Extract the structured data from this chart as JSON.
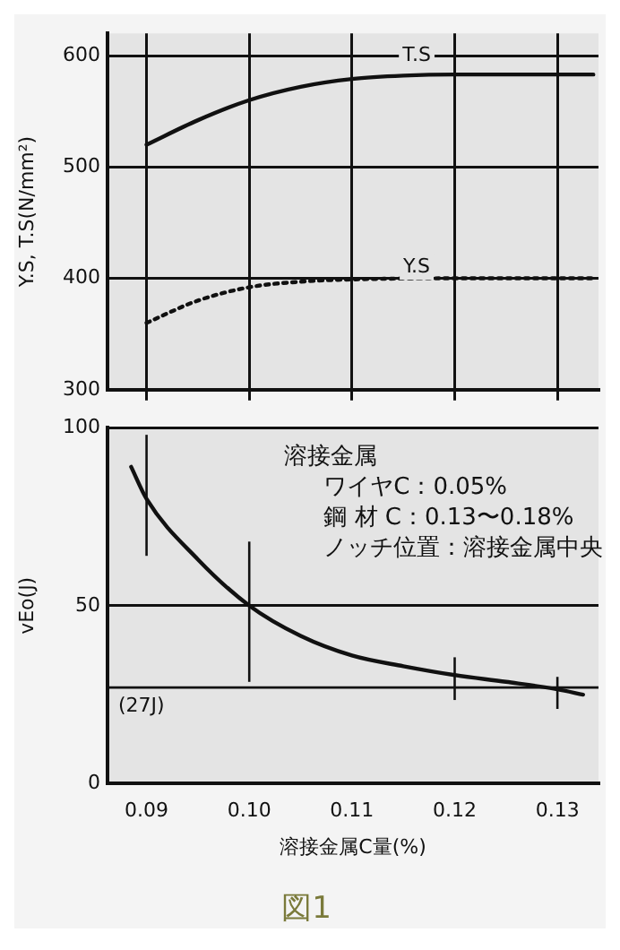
{
  "chart_data": [
    {
      "type": "line",
      "ylabel": "Y.S, T.S(N/mm²)",
      "xlim": [
        0.0862,
        0.134
      ],
      "xticks": [
        0.09,
        0.1,
        0.11,
        0.12,
        0.13
      ],
      "ylim": [
        300,
        620
      ],
      "yticks": [
        300,
        400,
        500,
        600
      ],
      "grid": true,
      "tick_labels": "y",
      "series": [
        {
          "color": "#111111",
          "line_style": "solid",
          "x": [
            0.09,
            0.095,
            0.1,
            0.105,
            0.11,
            0.115,
            0.12,
            0.1335
          ],
          "values": [
            520,
            542,
            560,
            572,
            579,
            582,
            583,
            583
          ]
        },
        {
          "color": "#111111",
          "line_style": "dotted",
          "x": [
            0.09,
            0.095,
            0.1,
            0.105,
            0.11,
            0.12,
            0.1335
          ],
          "values": [
            360,
            380,
            392,
            397,
            399,
            400,
            400
          ]
        }
      ],
      "annotations": [
        {
          "text": "T.S",
          "x": 0.1163,
          "y": 600
        },
        {
          "text": "Y.S",
          "x": 0.1163,
          "y": 410
        }
      ]
    },
    {
      "type": "line",
      "title": "図1",
      "xlabel": "溶接金属C量(%)",
      "ylabel": "vEo(J)",
      "xlim": [
        0.0862,
        0.134
      ],
      "xticks": [
        0.09,
        {
          "value": 0.1,
          "label": "0.10"
        },
        0.11,
        0.12,
        0.13
      ],
      "ylim": [
        0,
        100
      ],
      "yticks": [
        0,
        50,
        100
      ],
      "grid": "y",
      "series": [
        {
          "color": "#111111",
          "line_style": "solid",
          "x": [
            0.0885,
            0.09,
            0.095,
            0.1,
            0.105,
            0.11,
            0.115,
            0.12,
            0.125,
            0.13,
            0.1325
          ],
          "values": [
            89,
            80,
            63,
            50,
            41.5,
            36,
            33,
            30.5,
            28.6,
            26.5,
            25
          ],
          "errors": [
            null,
            [
              64,
              98
            ],
            null,
            [
              28.6,
              68
            ],
            null,
            null,
            null,
            [
              23.5,
              35.5
            ],
            null,
            [
              21,
              30
            ],
            null
          ]
        }
      ],
      "ref_lines": [
        {
          "axis": "y",
          "value": 27,
          "label": "(27J)"
        }
      ],
      "annotations": [
        "溶接金属",
        "ワイヤC：0.05%",
        "鋼 材 C：0.13〜0.18%",
        "ノッチ位置：溶接金属中央"
      ]
    }
  ]
}
